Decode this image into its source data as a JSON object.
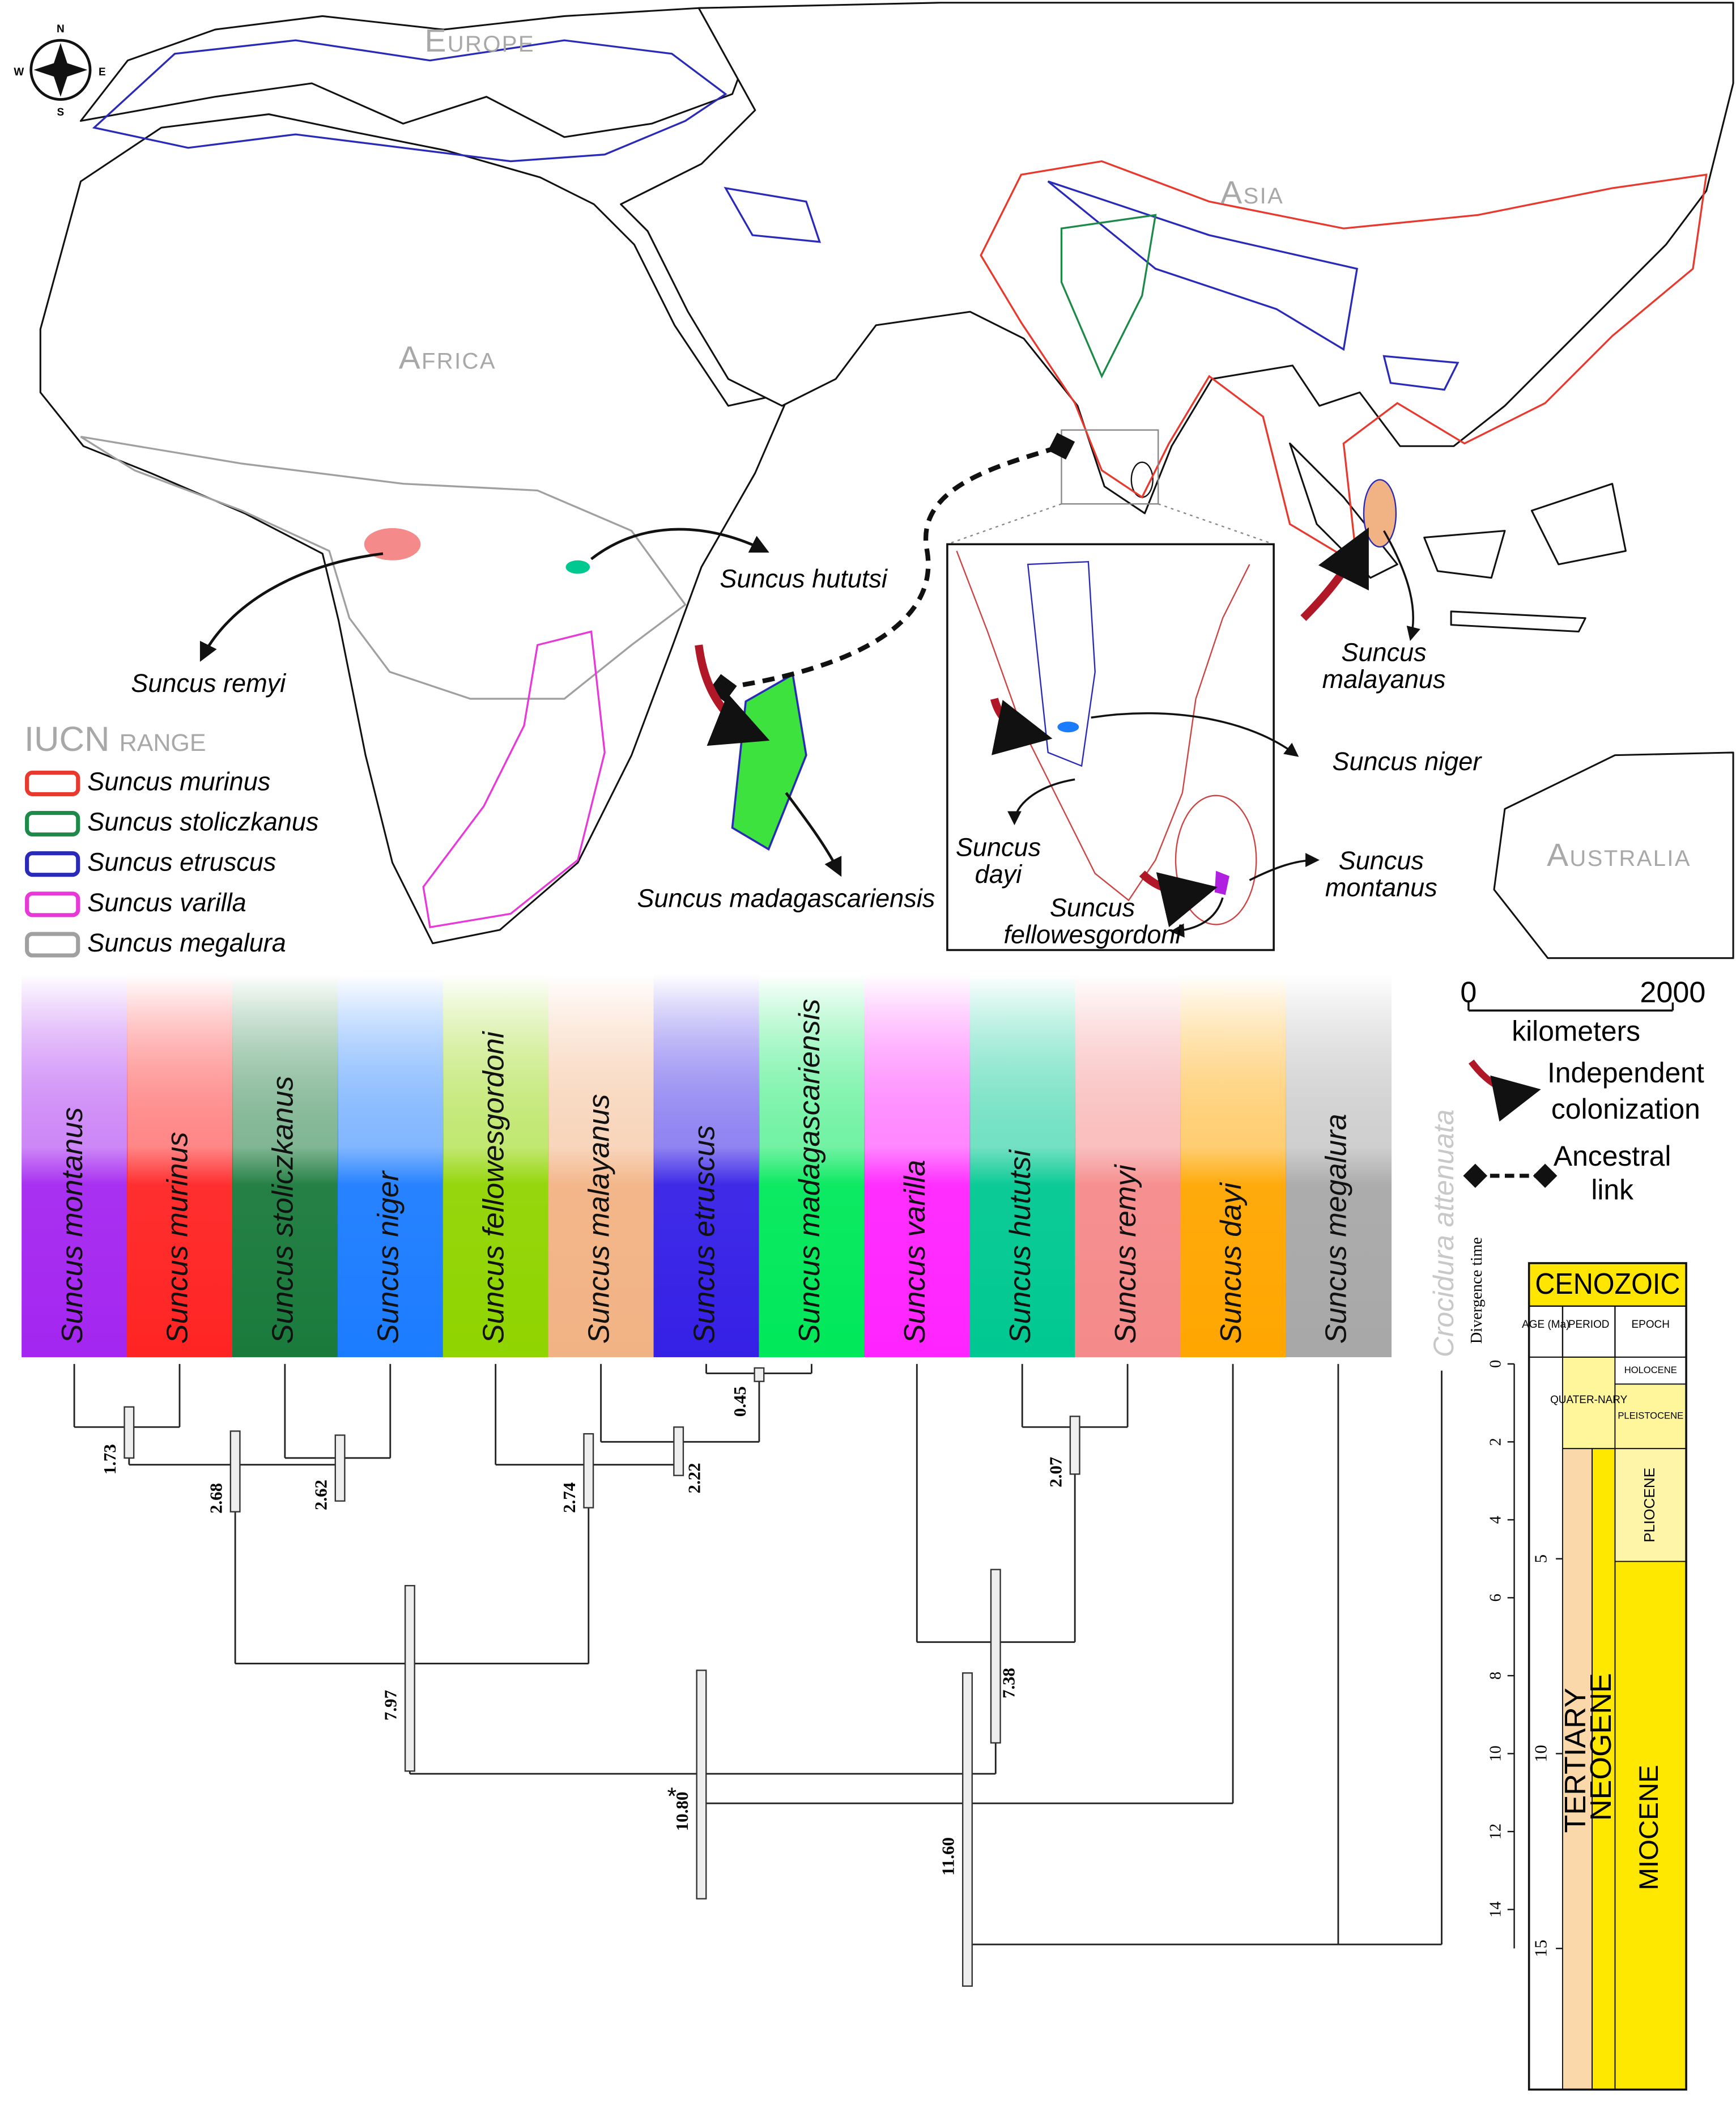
{
  "map": {
    "continents": [
      "Europe",
      "Asia",
      "Africa",
      "Australia"
    ],
    "compass": [
      "N",
      "S",
      "E",
      "W"
    ],
    "species_labels": [
      {
        "lines": [
          "Suncus remyi"
        ]
      },
      {
        "lines": [
          "Suncus hututsi"
        ]
      },
      {
        "lines": [
          "Suncus madagascariensis"
        ]
      },
      {
        "lines": [
          "Suncus niger"
        ]
      },
      {
        "lines": [
          "Suncus",
          "dayi"
        ]
      },
      {
        "lines": [
          "Suncus",
          "montanus"
        ]
      },
      {
        "lines": [
          "Suncus",
          "fellowesgordoni"
        ]
      },
      {
        "lines": [
          "Suncus",
          "malayanus"
        ]
      }
    ]
  },
  "legend": {
    "title": "IUCN range",
    "items": [
      {
        "name": "Suncus murinus",
        "color": "#e8392f"
      },
      {
        "name": "Suncus stoliczkanus",
        "color": "#1e8a4a"
      },
      {
        "name": "Suncus etruscus",
        "color": "#2a2ab8"
      },
      {
        "name": "Suncus varilla",
        "color": "#e838d8"
      },
      {
        "name": "Suncus megalura",
        "color": "#a0a0a0"
      }
    ]
  },
  "scale_bar": {
    "ticks": [
      0,
      2000
    ],
    "unit": "kilometers"
  },
  "key": {
    "colonization": [
      "Independent",
      "colonization"
    ],
    "ancestral": [
      "Ancestral",
      "link"
    ]
  },
  "species": [
    {
      "name": "Suncus montanus",
      "color": "#a426f0"
    },
    {
      "name": "Suncus murinus",
      "color": "#ff2424"
    },
    {
      "name": "Suncus stoliczkanus",
      "color": "#1a7a3c"
    },
    {
      "name": "Suncus niger",
      "color": "#1c7cff"
    },
    {
      "name": "Suncus fellowesgordoni",
      "color": "#90d400"
    },
    {
      "name": "Suncus malayanus",
      "color": "#f2b384"
    },
    {
      "name": "Suncus etruscus",
      "color": "#3520e6"
    },
    {
      "name": "Suncus madagascariensis",
      "color": "#00e85a"
    },
    {
      "name": "Suncus varilla",
      "color": "#ff24ff"
    },
    {
      "name": "Suncus hututsi",
      "color": "#00c891"
    },
    {
      "name": "Suncus remyi",
      "color": "#f58a8a"
    },
    {
      "name": "Suncus dayi",
      "color": "#ffa600"
    },
    {
      "name": "Suncus megalura",
      "color": "#a8a8a8"
    }
  ],
  "outgroup": "Crocidura attenuata",
  "tree": {
    "node_ages": [
      "1.73",
      "2.62",
      "2.68",
      "0.45",
      "2.22",
      "2.74",
      "7.97",
      "2.07",
      "7.38",
      "10.80",
      "11.60"
    ],
    "marker": "*"
  },
  "time_axis": {
    "label": "Divergence time",
    "ticks": [
      0,
      2,
      4,
      6,
      8,
      10,
      12,
      14
    ]
  },
  "timescale": {
    "era": "CENOZOIC",
    "headers": [
      "AGE (Ma)",
      "PERIOD",
      "EPOCH"
    ],
    "age_ticks": [
      5,
      10,
      15
    ],
    "units": [
      "QUATER-NARY",
      "HOLOCENE",
      "PLEISTOCENE",
      "PLIOCENE",
      "MIOCENE",
      "TERTIARY",
      "NEOGENE"
    ]
  }
}
